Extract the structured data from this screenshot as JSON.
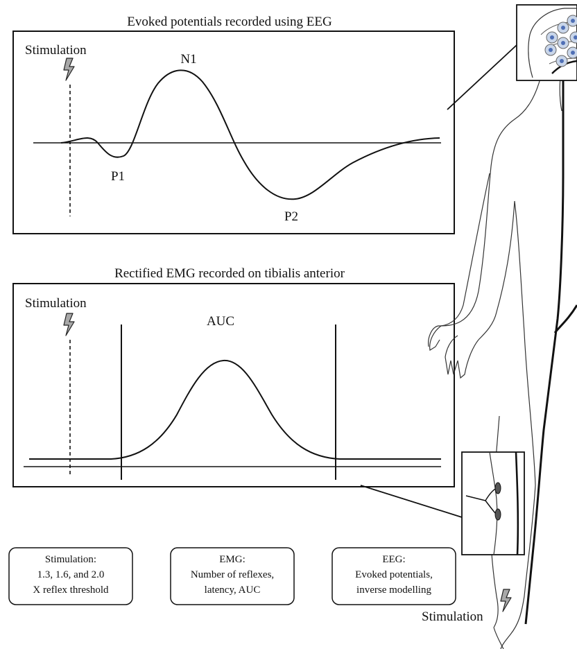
{
  "eeg_panel": {
    "title": "Evoked potentials recorded using EEG",
    "stimulation_label": "Stimulation",
    "peak_n1": "N1",
    "peak_p1": "P1",
    "peak_p2": "P2"
  },
  "emg_panel": {
    "title": "Rectified EMG recorded on tibialis anterior",
    "stimulation_label": "Stimulation",
    "auc_label": "AUC"
  },
  "info_boxes": [
    {
      "lines": [
        "Stimulation:",
        "1.3, 1.6, and 2.0",
        "X reflex threshold"
      ]
    },
    {
      "lines": [
        "EMG:",
        "Number of reflexes,",
        "latency, AUC"
      ]
    },
    {
      "lines": [
        "EEG:",
        "Evoked potentials,",
        "inverse modelling"
      ]
    }
  ],
  "body_figure": {
    "stimulation_label": "Stimulation"
  },
  "colors": {
    "ink": "#111111",
    "electrode_fill": "#c9d6ea",
    "electrode_dot": "#4f6fb5",
    "bolt_fill": "#a8a8a8"
  }
}
